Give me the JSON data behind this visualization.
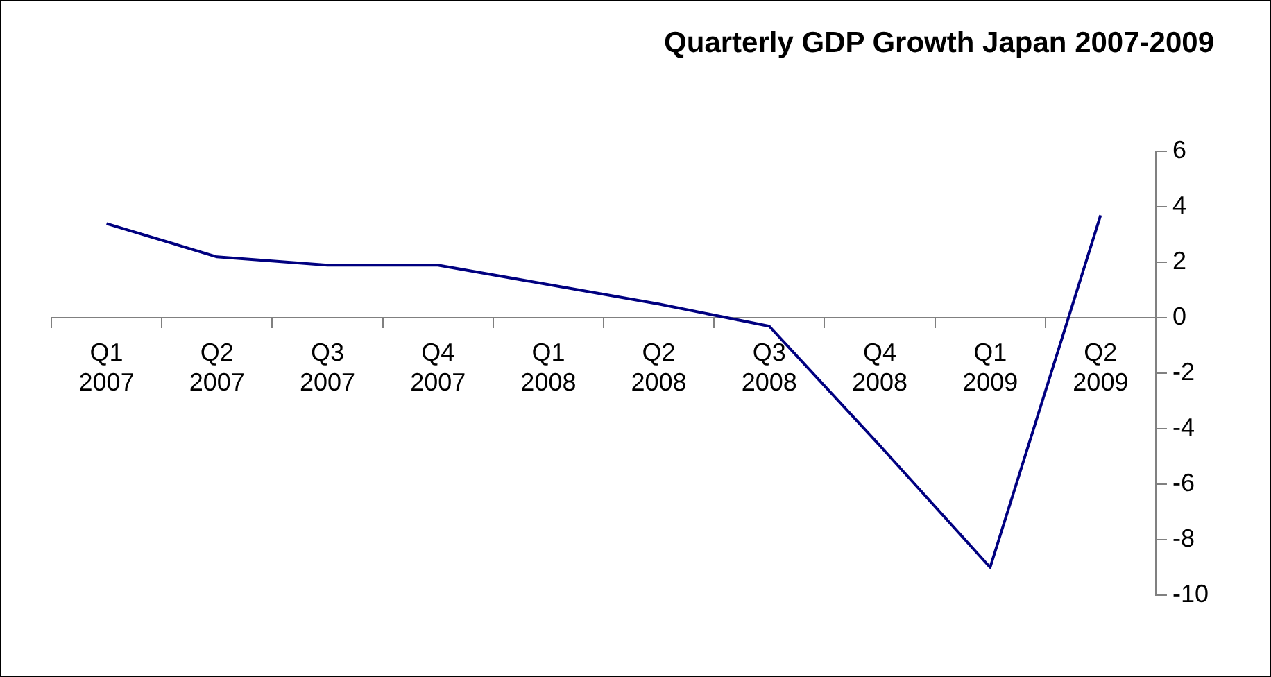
{
  "chart_data": {
    "type": "line",
    "title": "Quarterly GDP Growth Japan 2007-2009",
    "categories": [
      "Q1 2007",
      "Q2 2007",
      "Q3 2007",
      "Q4 2007",
      "Q1 2008",
      "Q2 2008",
      "Q3 2008",
      "Q4 2008",
      "Q1 2009",
      "Q2 2009"
    ],
    "series": [
      {
        "color": "#000080",
        "values": [
          3.4,
          2.2,
          1.9,
          1.9,
          1.2,
          0.5,
          -0.3,
          -4.6,
          -9.0,
          3.7
        ]
      }
    ],
    "ylim": [
      -10,
      6
    ],
    "yticks": [
      -10,
      -8,
      -6,
      -4,
      -2,
      0,
      2,
      4,
      6
    ],
    "grid": false,
    "legend": false,
    "marker": "none",
    "line_style": "solid"
  }
}
